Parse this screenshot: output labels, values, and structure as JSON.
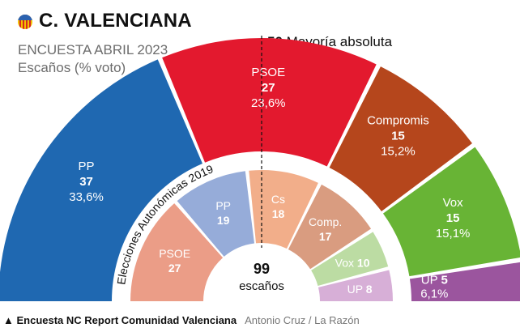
{
  "header": {
    "title": "C. VALENCIANA",
    "subtitle": "ENCUESTA ABRIL 2023",
    "subtitle2": "Escaños (% voto)",
    "majority_number": "50",
    "majority_text": "Mayoría absoluta"
  },
  "footer": {
    "source": "▲ Encuesta NC Report Comunidad Valenciana",
    "credit": "Antonio Cruz  /  La Razón"
  },
  "chart_data": [
    {
      "type": "pie",
      "ring": "outer",
      "total_seats": 99,
      "series": [
        {
          "name": "PP",
          "seats": 37,
          "pct": "33,6%",
          "color": "#1f68b1"
        },
        {
          "name": "PSOE",
          "seats": 27,
          "pct": "23,6%",
          "color": "#e3192e"
        },
        {
          "name": "Compromis",
          "seats": 15,
          "pct": "15,2%",
          "color": "#b5461c"
        },
        {
          "name": "Vox",
          "seats": 15,
          "pct": "15,1%",
          "color": "#68b435"
        },
        {
          "name": "UP",
          "seats": 5,
          "pct": "6,1%",
          "color": "#9b559e"
        }
      ]
    },
    {
      "type": "pie",
      "ring": "inner",
      "title": "Elecciones Autonómicas 2019",
      "center_value": "99",
      "center_label": "escaños",
      "series": [
        {
          "name": "PSOE",
          "seats": 27,
          "color": "#eb9d87"
        },
        {
          "name": "PP",
          "seats": 19,
          "color": "#96acd9"
        },
        {
          "name": "Cs",
          "seats": 18,
          "color": "#f2ae8a"
        },
        {
          "name": "Comp.",
          "seats": 17,
          "color": "#d99c80"
        },
        {
          "name": "Vox",
          "seats": 10,
          "color": "#bcdca3"
        },
        {
          "name": "UP",
          "seats": 8,
          "color": "#d7afd7"
        }
      ]
    }
  ]
}
